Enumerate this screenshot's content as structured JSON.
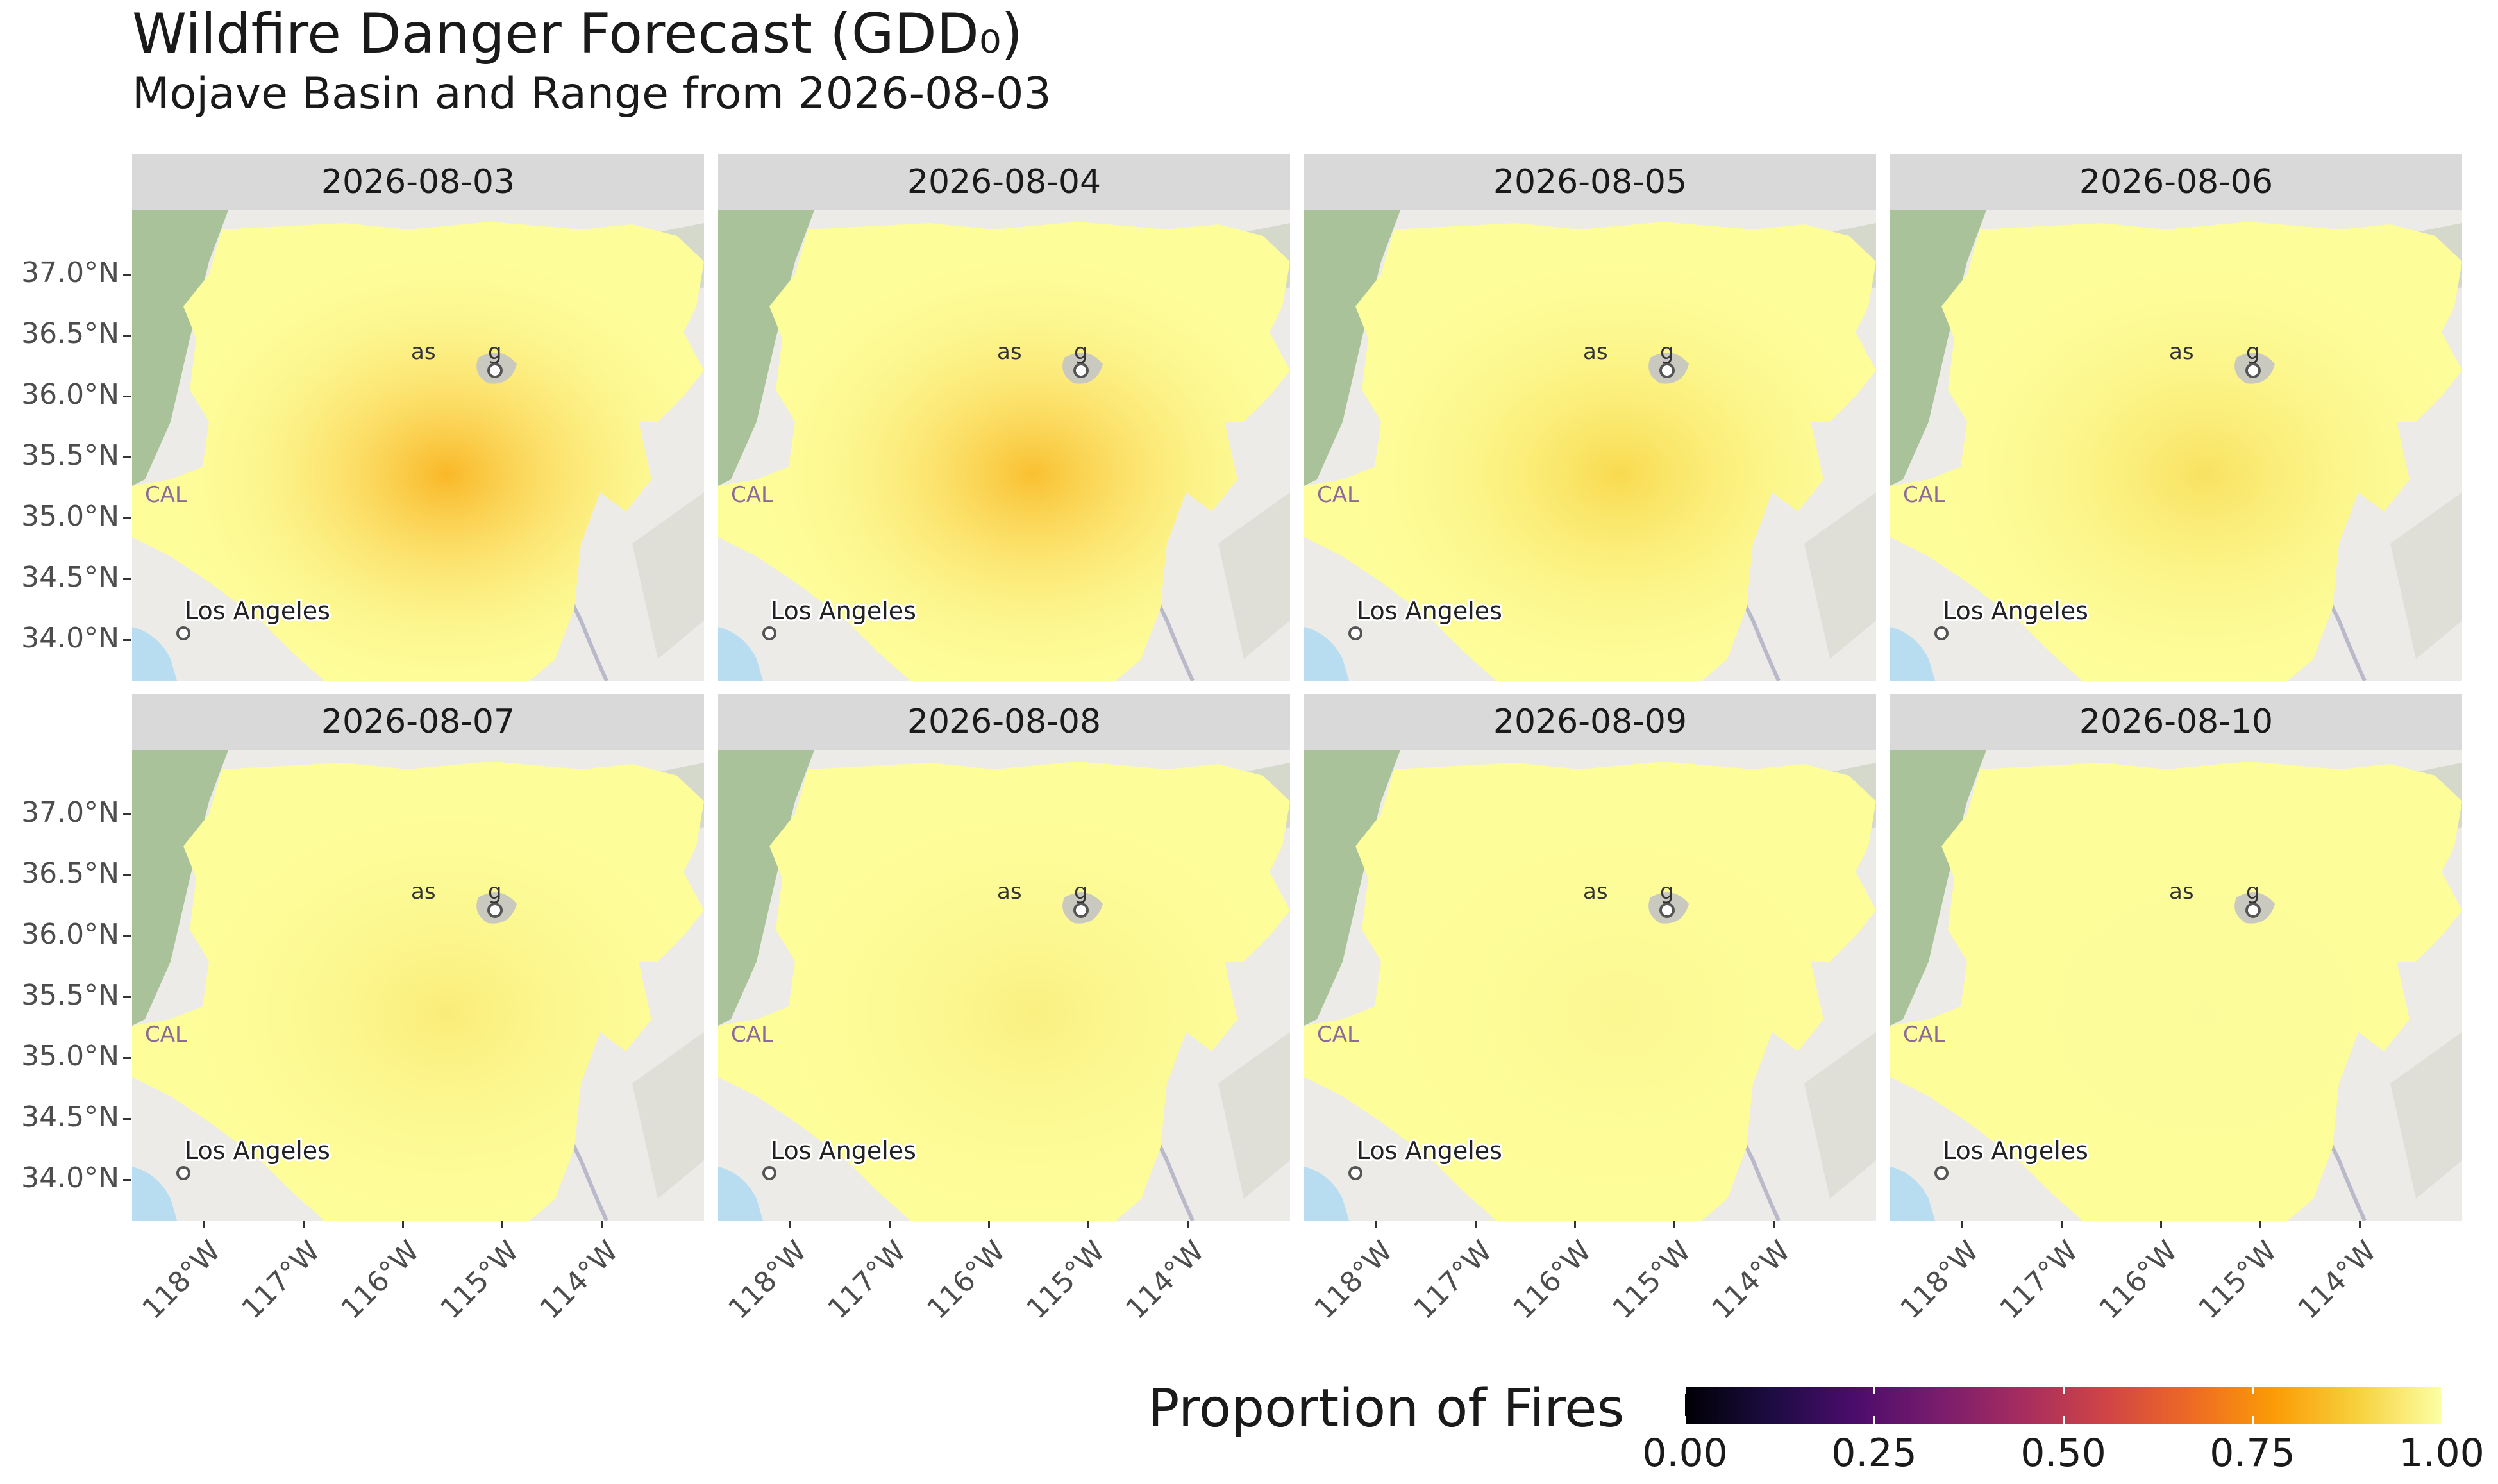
{
  "title": "Wildfire Danger Forecast (GDD₀)",
  "subtitle": "Mojave Basin and Range from 2026-08-03",
  "panels": [
    {
      "date": "2026-08-03",
      "hotspot_proportion": 0.82
    },
    {
      "date": "2026-08-04",
      "hotspot_proportion": 0.84
    },
    {
      "date": "2026-08-05",
      "hotspot_proportion": 0.9
    },
    {
      "date": "2026-08-06",
      "hotspot_proportion": 0.92
    },
    {
      "date": "2026-08-07",
      "hotspot_proportion": 0.95
    },
    {
      "date": "2026-08-08",
      "hotspot_proportion": 0.96
    },
    {
      "date": "2026-08-09",
      "hotspot_proportion": 0.98
    },
    {
      "date": "2026-08-10",
      "hotspot_proportion": 0.99
    }
  ],
  "axes": {
    "lat_labels": [
      "37.0°N",
      "36.5°N",
      "36.0°N",
      "35.5°N",
      "35.0°N",
      "34.5°N",
      "34.0°N"
    ],
    "lat_values": [
      37.0,
      36.5,
      36.0,
      35.5,
      35.0,
      34.5,
      34.0
    ],
    "lon_labels": [
      "118°W",
      "117°W",
      "116°W",
      "115°W",
      "114°W"
    ],
    "lon_values": [
      -118,
      -117,
      -116,
      -115,
      -114
    ]
  },
  "basemap": {
    "city_label": "Los Angeles",
    "state_label_fragment": "CAL",
    "las_vegas_fragment_left": "as",
    "las_vegas_fragment_right": "g"
  },
  "legend": {
    "title": "Proportion of Fires",
    "ticks": [
      "0.00",
      "0.25",
      "0.50",
      "0.75",
      "1.00"
    ],
    "tick_values": [
      0.0,
      0.25,
      0.5,
      0.75,
      1.0
    ],
    "colormap": "inferno",
    "colors": [
      "#000004",
      "#1b0c41",
      "#4a0c6b",
      "#781c6d",
      "#a52c60",
      "#cf4446",
      "#ed6925",
      "#fb9b06",
      "#f7d13d",
      "#fcffa4"
    ]
  },
  "colors": {
    "strip_bg": "#d9d9d9",
    "basemap_bg": "#ecebe7",
    "water": "#b8dcf0",
    "forest": "#9dbb8c",
    "overlay_fill": "#fdfd9a"
  }
}
